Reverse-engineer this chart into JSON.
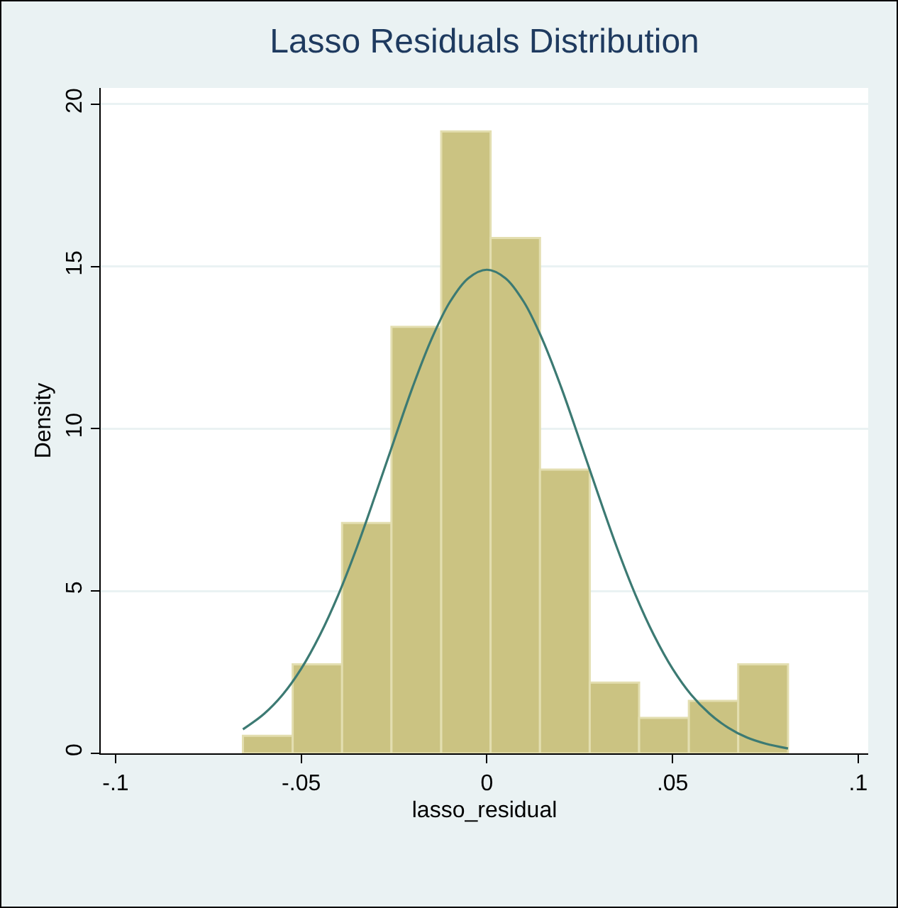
{
  "chart_data": {
    "type": "histogram",
    "title": "Lasso Residuals Distribution",
    "xlabel": "lasso_residual",
    "ylabel": "Density",
    "bins": [
      -0.0657,
      -0.0523,
      -0.039,
      -0.0257,
      -0.0123,
      0.001,
      0.0143,
      0.0277,
      0.041,
      0.0544,
      0.0677,
      0.0811
    ],
    "values": [
      0.54,
      2.74,
      7.1,
      13.14,
      19.16,
      15.88,
      8.74,
      2.18,
      1.09,
      1.62,
      2.74
    ],
    "color": "#cbc382",
    "series": [
      {
        "type": "line",
        "color": "#3c7a73",
        "x": [
          -0.0657,
          -0.06,
          -0.055,
          -0.05,
          -0.045,
          -0.04,
          -0.035,
          -0.03,
          -0.025,
          -0.02,
          -0.015,
          -0.01,
          -0.005,
          0,
          0.005,
          0.01,
          0.015,
          0.02,
          0.025,
          0.03,
          0.035,
          0.04,
          0.045,
          0.05,
          0.055,
          0.06,
          0.065,
          0.07,
          0.075,
          0.0811
        ],
        "values": [
          0.74,
          1.22,
          1.81,
          2.61,
          3.64,
          4.89,
          6.35,
          7.97,
          9.64,
          11.28,
          12.74,
          13.9,
          14.64,
          14.9,
          14.64,
          13.9,
          12.74,
          11.28,
          9.64,
          7.97,
          6.35,
          4.89,
          3.64,
          2.61,
          1.81,
          1.22,
          0.79,
          0.49,
          0.3,
          0.15
        ]
      }
    ],
    "xlim": [
      -0.104,
      0.1027
    ],
    "ylim": [
      0,
      20.5
    ],
    "xticks": [
      {
        "value": -0.1,
        "label": "-.1"
      },
      {
        "value": -0.05,
        "label": "-.05"
      },
      0,
      {
        "value": 0.05,
        "label": ".05"
      },
      {
        "value": 0.1,
        "label": ".1"
      }
    ],
    "yticks": [
      0,
      5,
      10,
      15,
      20
    ],
    "grid": "y",
    "line_style": "solid",
    "marker": "none"
  }
}
